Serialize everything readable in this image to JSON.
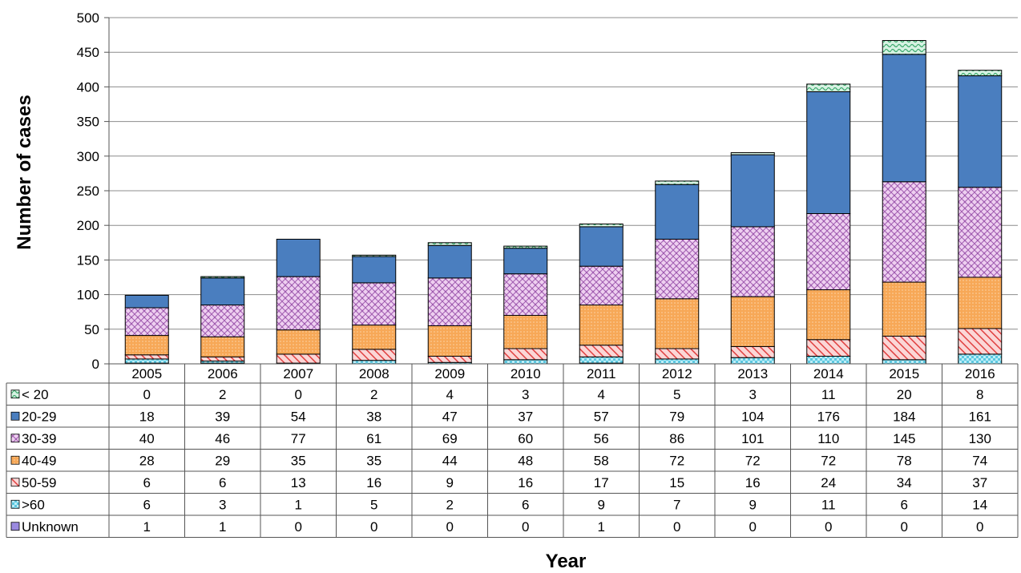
{
  "chart_data": {
    "type": "bar",
    "stacked": true,
    "title": "",
    "xlabel": "Year",
    "ylabel": "Number of cases",
    "ylim": [
      0,
      500
    ],
    "yticks": [
      0,
      50,
      100,
      150,
      200,
      250,
      300,
      350,
      400,
      450,
      500
    ],
    "grid": true,
    "legend": "data-table",
    "categories": [
      "2005",
      "2006",
      "2007",
      "2008",
      "2009",
      "2010",
      "2011",
      "2012",
      "2013",
      "2014",
      "2015",
      "2016"
    ],
    "series": [
      {
        "name": "< 20",
        "values": [
          0,
          2,
          0,
          2,
          4,
          3,
          4,
          5,
          3,
          11,
          20,
          8
        ],
        "color": "#c8ecd9",
        "pattern": "wave"
      },
      {
        "name": "20-29",
        "values": [
          18,
          39,
          54,
          38,
          47,
          37,
          57,
          79,
          104,
          176,
          184,
          161
        ],
        "color": "#4a7ebf",
        "pattern": "solid"
      },
      {
        "name": "30-39",
        "values": [
          40,
          46,
          77,
          61,
          69,
          60,
          56,
          86,
          101,
          110,
          145,
          130
        ],
        "color": "#e8c4ec",
        "pattern": "lattice"
      },
      {
        "name": "40-49",
        "values": [
          28,
          29,
          35,
          35,
          44,
          48,
          58,
          72,
          72,
          72,
          78,
          74
        ],
        "color": "#f7a857",
        "pattern": "dots"
      },
      {
        "name": "50-59",
        "values": [
          6,
          6,
          13,
          16,
          9,
          16,
          17,
          15,
          16,
          24,
          34,
          37
        ],
        "color": "#f08080",
        "pattern": "diagonal"
      },
      {
        "name": ">60",
        "values": [
          6,
          3,
          1,
          5,
          2,
          6,
          9,
          7,
          9,
          11,
          6,
          14
        ],
        "color": "#9de3f2",
        "pattern": "checker"
      },
      {
        "name": "Unknown",
        "values": [
          1,
          1,
          0,
          0,
          0,
          0,
          1,
          0,
          0,
          0,
          0,
          0
        ],
        "color": "#9a8ae0",
        "pattern": "solid"
      }
    ]
  }
}
